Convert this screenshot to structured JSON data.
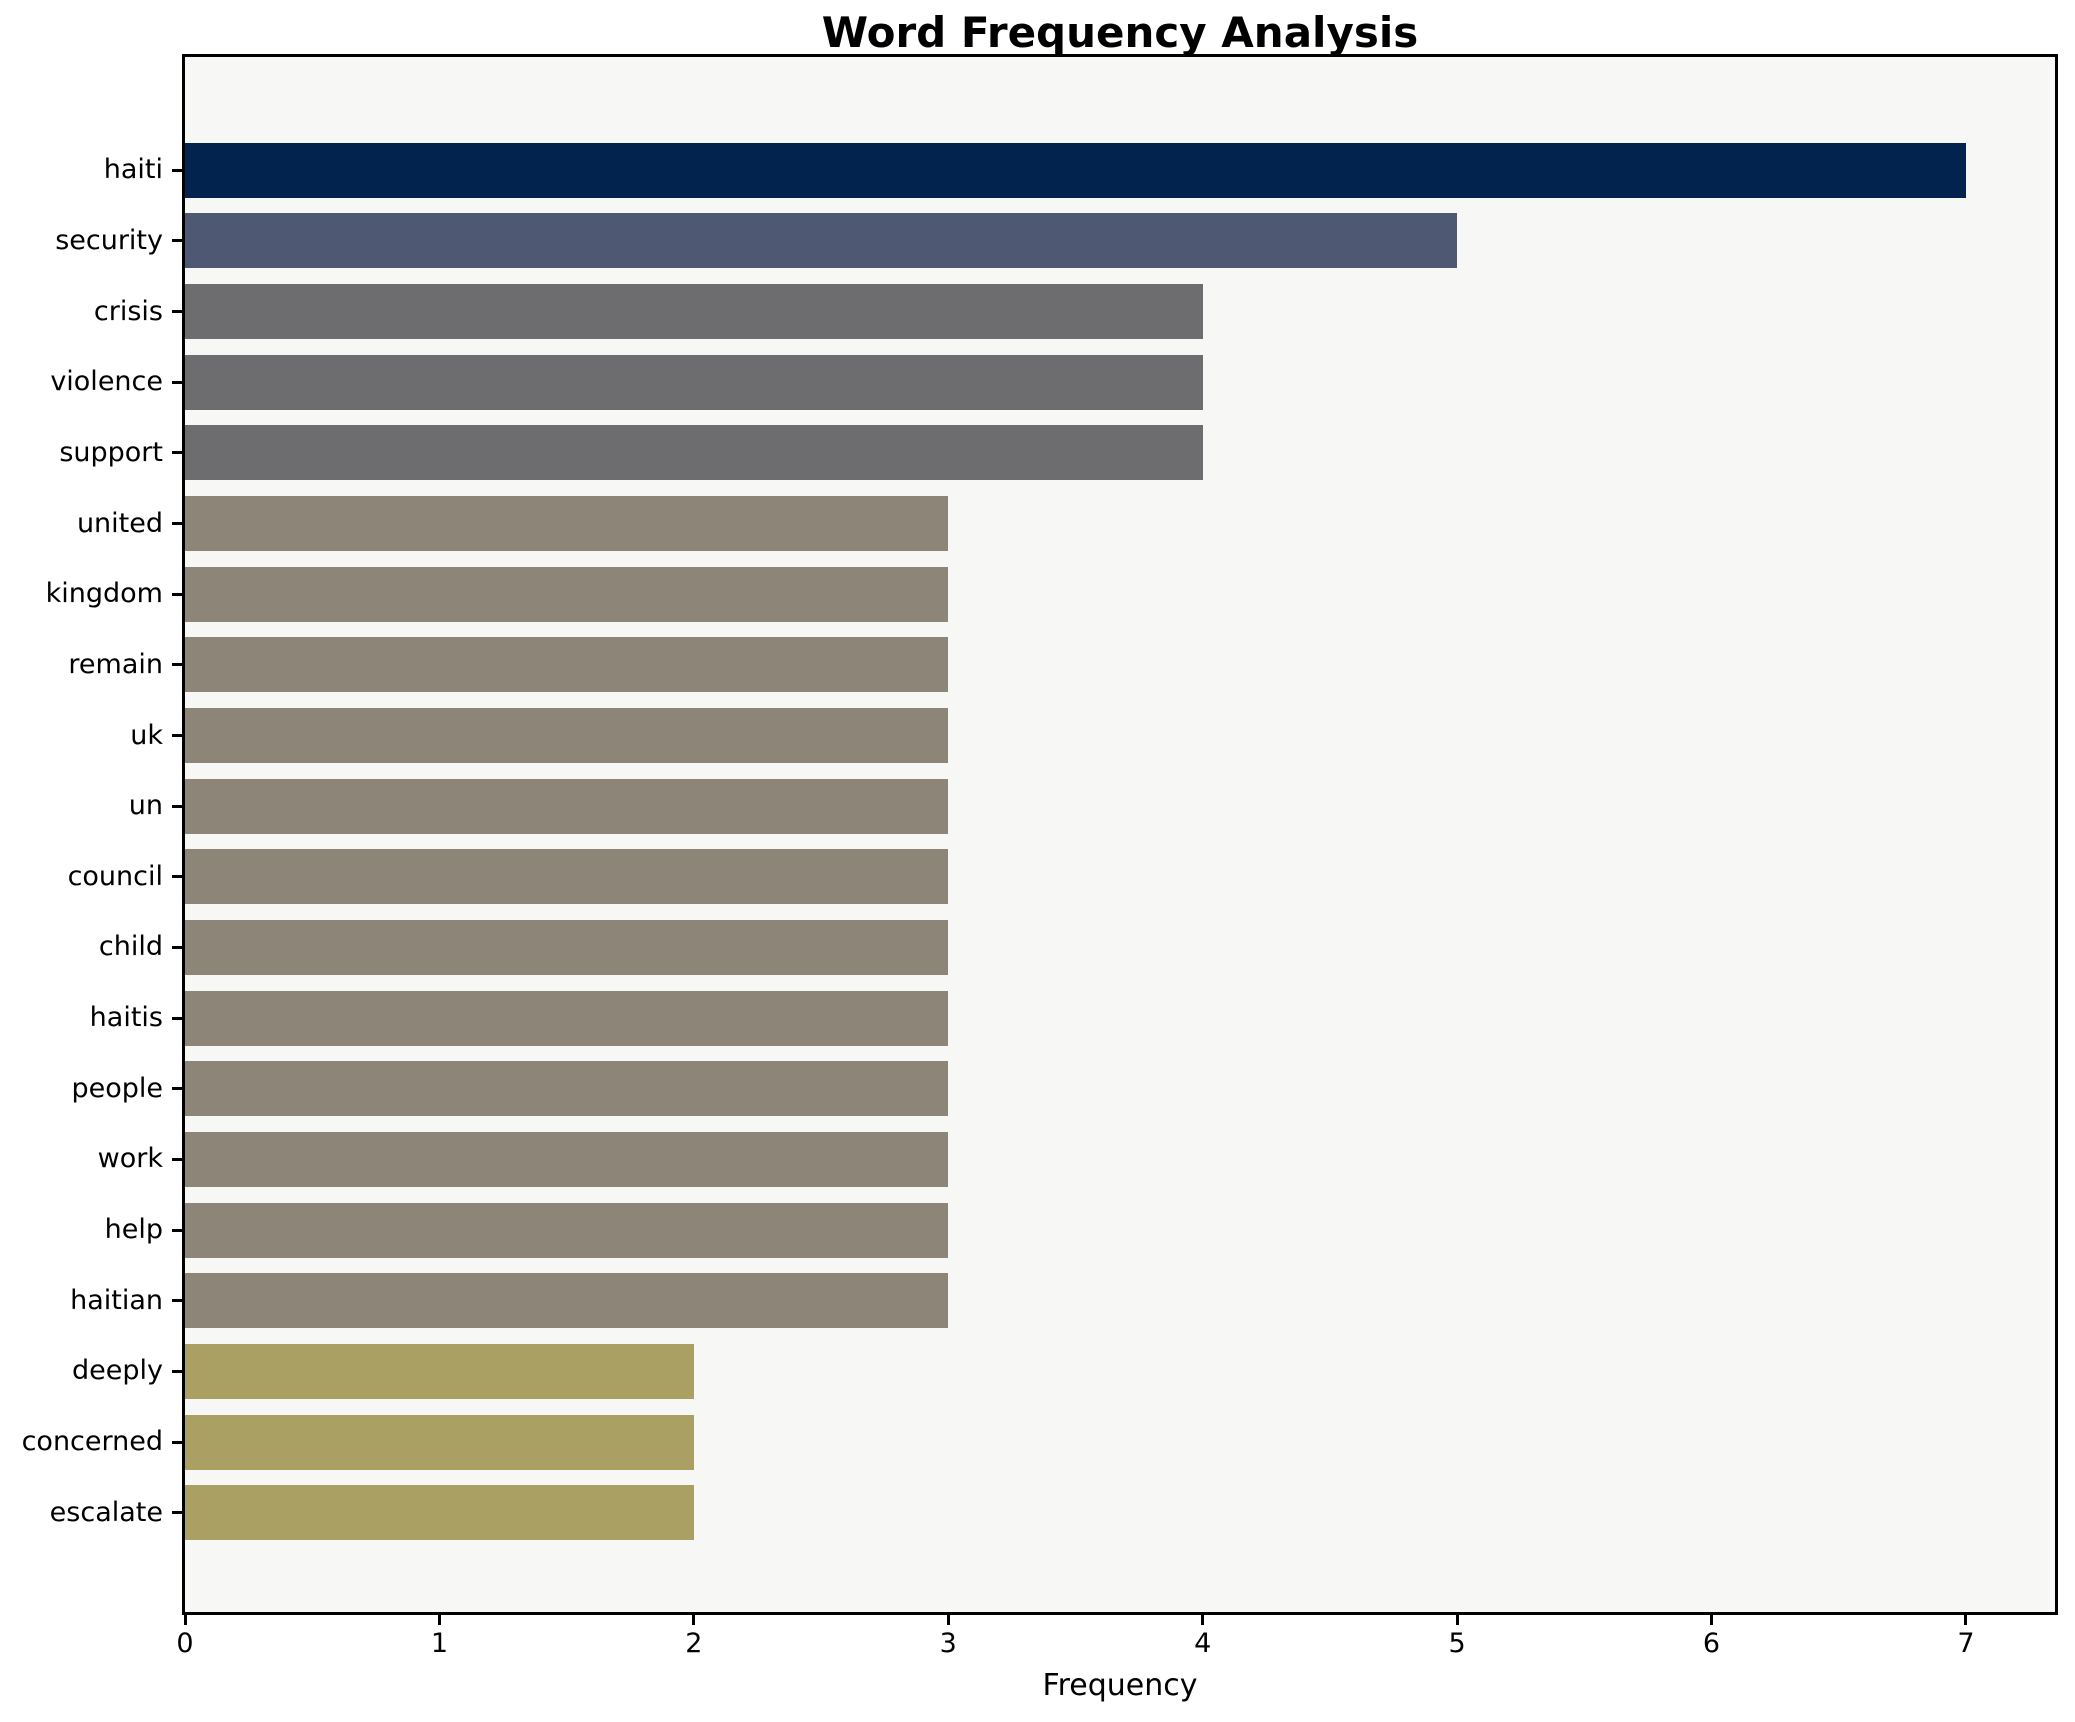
{
  "title": "Word Frequency Analysis",
  "chart_data": {
    "type": "bar",
    "orientation": "horizontal",
    "title": "Word Frequency Analysis",
    "xlabel": "Frequency",
    "ylabel": "",
    "categories": [
      "haiti",
      "security",
      "crisis",
      "violence",
      "support",
      "united",
      "kingdom",
      "remain",
      "uk",
      "un",
      "council",
      "child",
      "haitis",
      "people",
      "work",
      "help",
      "haitian",
      "deeply",
      "concerned",
      "escalate"
    ],
    "values": [
      7,
      5,
      4,
      4,
      4,
      3,
      3,
      3,
      3,
      3,
      3,
      3,
      3,
      3,
      3,
      3,
      3,
      2,
      2,
      2
    ],
    "xticks": [
      0,
      1,
      2,
      3,
      4,
      5,
      6,
      7
    ],
    "xlim": [
      0,
      7.35
    ],
    "grid": false,
    "legend": null,
    "bar_color_by_value": {
      "7": "#01234e",
      "5": "#4f5873",
      "4": "#6d6d70",
      "3": "#8d8577",
      "2": "#aba064"
    },
    "plot_background": "#f7f7f6",
    "figure_background": "#ffffff",
    "axis_color": "#000000"
  }
}
